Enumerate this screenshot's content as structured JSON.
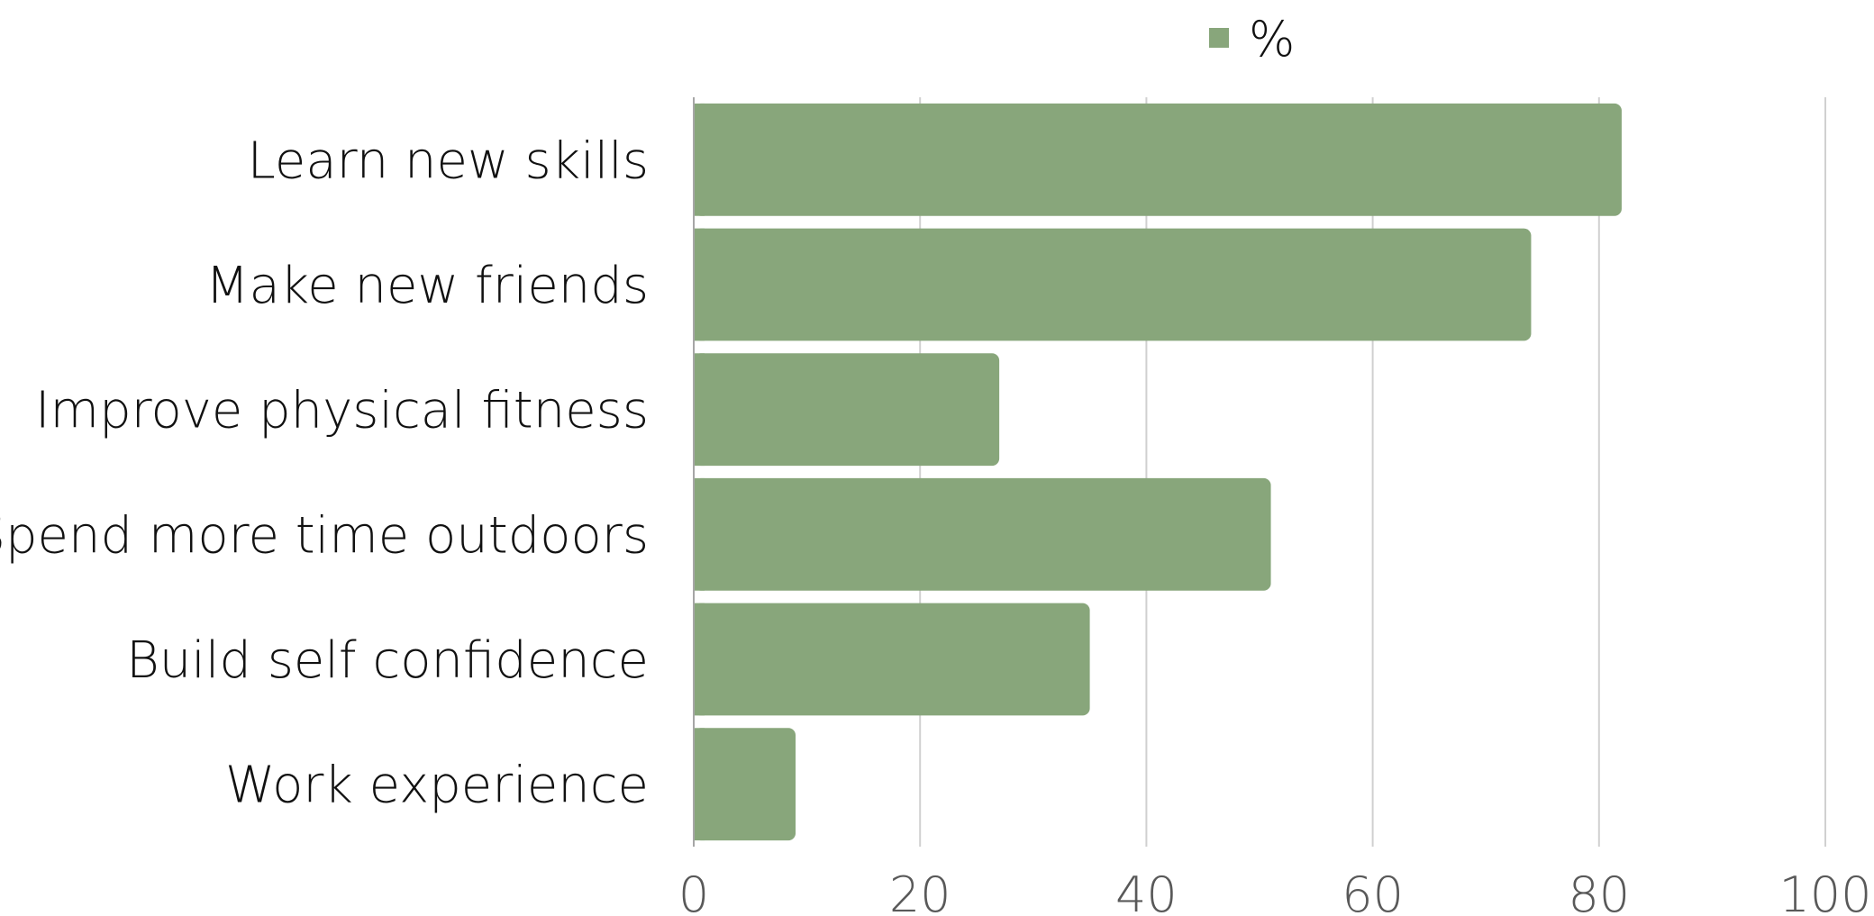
{
  "chart_data": {
    "type": "bar",
    "orientation": "horizontal",
    "categories": [
      "Learn new skills",
      "Make new friends",
      "Improve physical fitness",
      "Spend more time outdoors",
      "Build self confidence",
      "Work experience"
    ],
    "series": [
      {
        "name": "%",
        "values": [
          82,
          74,
          27,
          51,
          35,
          9
        ],
        "color": "#88a67b"
      }
    ],
    "xlim": [
      0,
      100
    ],
    "xticks": [
      0,
      20,
      40,
      60,
      80,
      100
    ],
    "xtick_labels": [
      "0",
      "20",
      "40",
      "60",
      "80",
      "100"
    ],
    "grid": true,
    "legend": {
      "position": "top",
      "entries": [
        "%"
      ]
    },
    "colors": {
      "bar": "#88a67b",
      "grid": "#d0d0d0",
      "axis": "#a6a6a6",
      "tick_text": "#595959",
      "label_text": "#111111"
    }
  }
}
